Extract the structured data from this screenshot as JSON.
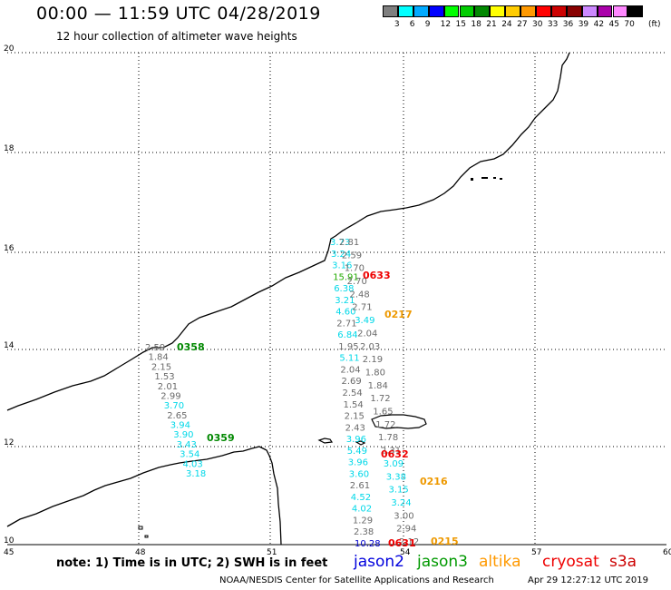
{
  "header": {
    "title": "00:00 — 11:59 UTC 04/28/2019",
    "subtitle": "12 hour collection of altimeter wave heights"
  },
  "color_scale": {
    "colors": [
      "#7f7f7f",
      "#00ffff",
      "#00aaff",
      "#0000ff",
      "#00ff00",
      "#00cc00",
      "#008800",
      "#ffff00",
      "#ffcc00",
      "#ff9900",
      "#ff0000",
      "#cc0000",
      "#880000",
      "#cc88ff",
      "#aa00aa",
      "#ff88ff",
      "#000000"
    ],
    "labels": [
      "3",
      "6",
      "9",
      "12",
      "15",
      "18",
      "21",
      "24",
      "27",
      "30",
      "33",
      "36",
      "39",
      "42",
      "45",
      "70"
    ],
    "unit": "(ft)"
  },
  "map": {
    "lat_labels": [
      "20",
      "18",
      "16",
      "14",
      "12",
      "10"
    ],
    "lon_labels": [
      "45",
      "48",
      "51",
      "54",
      "57",
      "60"
    ],
    "text_colors": {
      "gray": "#6a6a6a",
      "cyan": "#00d8e8",
      "blue": "#0000cc",
      "green": "#22aa00",
      "darkgreen": "#008800",
      "red": "#ee0000",
      "orange": "#ee9900"
    },
    "tracks": [
      {
        "satellite": "jason3",
        "time": "0358",
        "color": "darkgreen",
        "label_pos": "top"
      },
      {
        "satellite": "jason3",
        "time": "0359",
        "color": "darkgreen",
        "label_pos": "bottom"
      },
      {
        "satellite": "cryosat",
        "time": "0633",
        "color": "red",
        "label_pos": "top"
      },
      {
        "satellite": "cryosat",
        "time": "0632",
        "color": "red",
        "label_pos": "mid"
      },
      {
        "satellite": "cryosat",
        "time": "0631",
        "color": "red",
        "label_pos": "bottom"
      },
      {
        "satellite": "altika",
        "time": "0217",
        "color": "orange",
        "label_pos": "top"
      },
      {
        "satellite": "altika",
        "time": "0216",
        "color": "orange",
        "label_pos": "mid"
      },
      {
        "satellite": "altika",
        "time": "0215",
        "color": "orange",
        "label_pos": "bottom"
      }
    ],
    "wave_heights_left_track": [
      {
        "v": "2.59",
        "c": "gray"
      },
      {
        "v": "1.84",
        "c": "gray"
      },
      {
        "v": "2.15",
        "c": "gray"
      },
      {
        "v": "1.53",
        "c": "gray"
      },
      {
        "v": "2.01",
        "c": "gray"
      },
      {
        "v": "2.99",
        "c": "gray"
      },
      {
        "v": "3.70",
        "c": "cyan"
      },
      {
        "v": "2.65",
        "c": "gray"
      },
      {
        "v": "3.94",
        "c": "cyan"
      },
      {
        "v": "3.90",
        "c": "cyan"
      },
      {
        "v": "3.43",
        "c": "cyan"
      },
      {
        "v": "3.54",
        "c": "cyan"
      },
      {
        "v": "4.03",
        "c": "cyan"
      },
      {
        "v": "3.18",
        "c": "cyan"
      }
    ],
    "wave_heights_track_a": [
      {
        "v": "3.73",
        "c": "cyan"
      },
      {
        "v": "3.24",
        "c": "cyan"
      },
      {
        "v": "3.16",
        "c": "cyan"
      },
      {
        "v": "15.91",
        "c": "green"
      },
      {
        "v": "6.38",
        "c": "cyan"
      },
      {
        "v": "3.21",
        "c": "cyan"
      },
      {
        "v": "4.60",
        "c": "cyan"
      },
      {
        "v": "2.71",
        "c": "gray"
      },
      {
        "v": "6.84",
        "c": "cyan"
      },
      {
        "v": "1.95",
        "c": "gray"
      },
      {
        "v": "5.11",
        "c": "cyan"
      },
      {
        "v": "2.04",
        "c": "gray"
      },
      {
        "v": "2.69",
        "c": "gray"
      },
      {
        "v": "2.54",
        "c": "gray"
      },
      {
        "v": "1.54",
        "c": "gray"
      },
      {
        "v": "2.15",
        "c": "gray"
      },
      {
        "v": "2.43",
        "c": "gray"
      },
      {
        "v": "3.96",
        "c": "cyan"
      },
      {
        "v": "5.49",
        "c": "cyan"
      },
      {
        "v": "3.96",
        "c": "cyan"
      },
      {
        "v": "3.60",
        "c": "cyan"
      },
      {
        "v": "2.61",
        "c": "gray"
      },
      {
        "v": "4.52",
        "c": "cyan"
      },
      {
        "v": "4.02",
        "c": "cyan"
      },
      {
        "v": "1.29",
        "c": "gray"
      },
      {
        "v": "2.38",
        "c": "gray"
      },
      {
        "v": "10.28",
        "c": "blue"
      }
    ],
    "wave_heights_track_b": [
      {
        "v": "2.81",
        "c": "gray"
      },
      {
        "v": "2.59",
        "c": "gray"
      },
      {
        "v": "1.70",
        "c": "gray"
      },
      {
        "v": "2.70",
        "c": "gray"
      },
      {
        "v": "2.48",
        "c": "gray"
      },
      {
        "v": "2.71",
        "c": "gray"
      },
      {
        "v": "3.49",
        "c": "cyan"
      },
      {
        "v": "2.04",
        "c": "gray"
      },
      {
        "v": "2.03",
        "c": "gray"
      },
      {
        "v": "2.19",
        "c": "gray"
      },
      {
        "v": "1.80",
        "c": "gray"
      },
      {
        "v": "1.84",
        "c": "gray"
      },
      {
        "v": "1.72",
        "c": "gray"
      },
      {
        "v": "1.65",
        "c": "gray"
      },
      {
        "v": "1.72",
        "c": "gray"
      },
      {
        "v": "1.78",
        "c": "gray"
      },
      {
        "v": "2.31",
        "c": "gray"
      },
      {
        "v": "3.09",
        "c": "cyan"
      },
      {
        "v": "3.38",
        "c": "cyan"
      },
      {
        "v": "3.15",
        "c": "cyan"
      },
      {
        "v": "3.24",
        "c": "cyan"
      },
      {
        "v": "3.00",
        "c": "gray"
      },
      {
        "v": "2.94",
        "c": "gray"
      },
      {
        "v": "2.12",
        "c": "gray"
      }
    ]
  },
  "legend": {
    "note": "note: 1) Time is in UTC; 2) SWH is in feet",
    "satellites": [
      {
        "name": "jason2",
        "color": "#0000dd"
      },
      {
        "name": "jason3",
        "color": "#009900"
      },
      {
        "name": "altika",
        "color": "#ff9900"
      },
      {
        "name": "cryosat",
        "color": "#ee0000"
      },
      {
        "name": "s3a",
        "color": "#cc0000"
      }
    ]
  },
  "footer": {
    "credit": "NOAA/NESDIS Center for Satellite Applications and Research",
    "generated": "Apr 29 12:27:12 UTC 2019"
  }
}
